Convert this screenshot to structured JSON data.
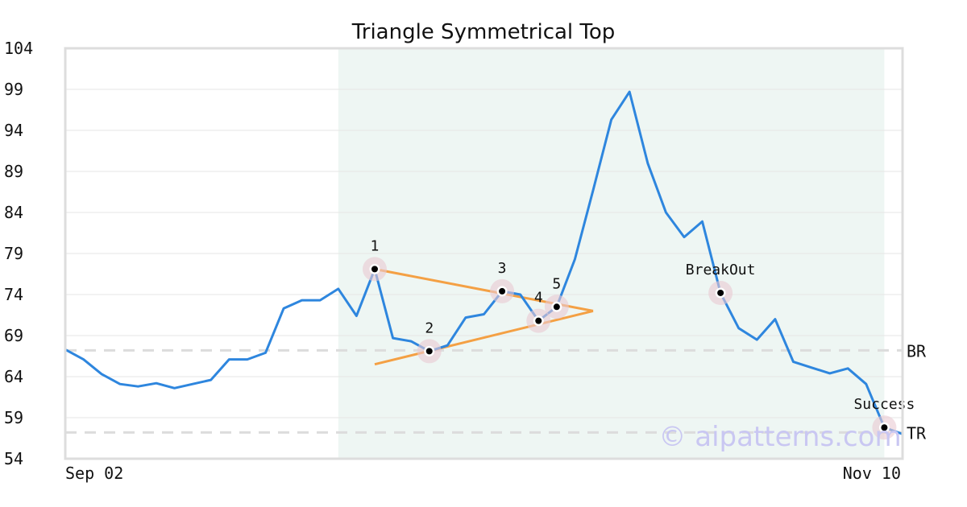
{
  "chart_data": {
    "type": "line",
    "title": "Triangle Symmetrical Top",
    "xlabel": "",
    "ylabel": "",
    "ylim": [
      54,
      104
    ],
    "y_ticks": [
      104,
      99,
      94,
      89,
      84,
      79,
      74,
      69,
      64,
      59,
      54
    ],
    "x_tick_labels": [
      "Sep 02",
      "Nov 10"
    ],
    "grid": "horizontal",
    "series": [
      {
        "color": "#2e86de",
        "values": [
          67.3,
          66.1,
          64.3,
          63.1,
          62.8,
          63.2,
          62.6,
          63.1,
          63.6,
          66.1,
          66.1,
          66.9,
          72.3,
          73.3,
          73.3,
          74.7,
          71.4,
          77.1,
          68.7,
          68.3,
          67.1,
          67.8,
          71.2,
          71.6,
          74.4,
          74.0,
          70.8,
          72.5,
          78.3,
          86.7,
          95.3,
          98.7,
          90.0,
          84.0,
          81.0,
          82.9,
          74.2,
          69.9,
          68.5,
          71.0,
          65.8,
          65.1,
          64.4,
          65.0,
          63.1,
          57.8,
          57.0
        ]
      }
    ],
    "shaded_region": {
      "from_index": 15,
      "to_index": 45,
      "color": "#eef6f3"
    },
    "reference_lines": [
      {
        "label": "BR",
        "y": 67.2
      },
      {
        "label": "TR",
        "y": 57.2
      }
    ],
    "triangle": {
      "color": "#f4a044",
      "upper": [
        [
          17,
          77.1
        ],
        [
          29,
          72.0
        ]
      ],
      "lower": [
        [
          17,
          65.5
        ],
        [
          29,
          72.0
        ]
      ]
    },
    "points": [
      {
        "label": "1",
        "i": 17,
        "y": 77.1
      },
      {
        "label": "2",
        "i": 20,
        "y": 67.1
      },
      {
        "label": "3",
        "i": 24,
        "y": 74.4
      },
      {
        "label": "4",
        "i": 26,
        "y": 70.8
      },
      {
        "label": "5",
        "i": 27,
        "y": 72.5
      },
      {
        "label": "BreakOut",
        "i": 36,
        "y": 74.2
      },
      {
        "label": "Success",
        "i": 45,
        "y": 57.8
      }
    ]
  },
  "watermark": "© aipatterns.com"
}
